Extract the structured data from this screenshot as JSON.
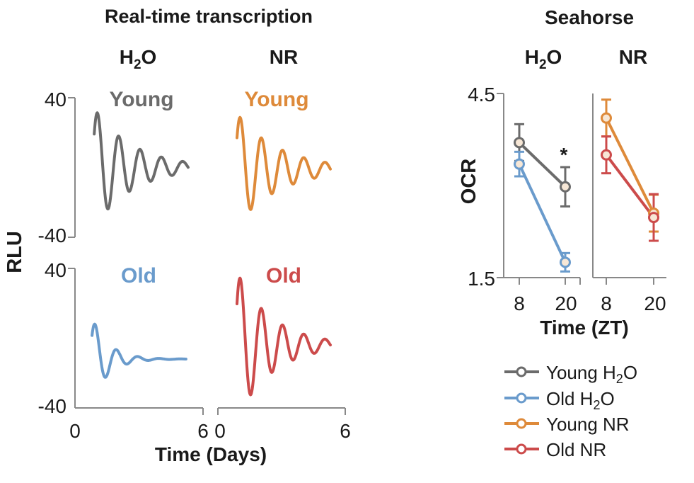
{
  "left_panel": {
    "title": "Real-time transcription",
    "col_h2o": {
      "main": "H",
      "sub": "2",
      "tail": "O"
    },
    "col_nr": "NR",
    "ylabel": "RLU",
    "xlabel": "Time (Days)",
    "y_top": "40",
    "y_bottom": "-40",
    "x_ticks": {
      "a0": "0",
      "a6": "6",
      "b0": "0",
      "b6": "6"
    }
  },
  "right_panel": {
    "title": "Seahorse",
    "col_h2o": {
      "main": "H",
      "sub": "2",
      "tail": "O"
    },
    "col_nr": "NR",
    "ylabel": "OCR",
    "xlabel": "Time (ZT)",
    "y_ticks": [
      "4.5",
      "1.5"
    ],
    "x_ticks": [
      "8",
      "20",
      "8",
      "20"
    ],
    "significance": "*"
  },
  "legend": [
    {
      "main": "Young H",
      "sub": "2",
      "tail": "O",
      "color": "#6b6b6b"
    },
    {
      "main": "Old H",
      "sub": "2",
      "tail": "O",
      "color": "#6a9bcc"
    },
    {
      "main": "Young NR",
      "sub": "",
      "tail": "",
      "color": "#de8a3a"
    },
    {
      "main": "Old NR",
      "sub": "",
      "tail": "",
      "color": "#cc4b4b"
    }
  ],
  "chart_data": [
    {
      "type": "line",
      "title": "Real-time transcription",
      "xlabel": "Time (Days)",
      "ylabel": "RLU",
      "ylim": [
        -40,
        40
      ],
      "xlim": [
        0,
        6
      ],
      "panels": [
        {
          "name": "Young",
          "group": "H2O",
          "color": "#6b6b6b",
          "x_start": 0.9,
          "x_end": 5.3,
          "amplitude": 34,
          "decay": 0.55,
          "period": 1.0,
          "offset": 0
        },
        {
          "name": "Young",
          "group": "NR",
          "color": "#de8a3a",
          "x_start": 0.9,
          "x_end": 5.3,
          "amplitude": 32,
          "decay": 0.5,
          "period": 1.0,
          "offset": -1
        },
        {
          "name": "Old",
          "group": "H2O",
          "color": "#6a9bcc",
          "x_start": 0.8,
          "x_end": 5.2,
          "amplitude": 24,
          "decay": 1.3,
          "period": 1.0,
          "offset": -12
        },
        {
          "name": "Old",
          "group": "NR",
          "color": "#cc4b4b",
          "x_start": 0.9,
          "x_end": 5.3,
          "amplitude": 42,
          "decay": 0.6,
          "period": 1.0,
          "offset": -4
        }
      ]
    },
    {
      "type": "line",
      "title": "Seahorse",
      "xlabel": "Time (ZT)",
      "ylabel": "OCR",
      "ylim": [
        1.5,
        4.5
      ],
      "categories": [
        "8",
        "20"
      ],
      "groups": [
        "H2O",
        "NR"
      ],
      "series": [
        {
          "name": "Young H2O",
          "group": "H2O",
          "color": "#6b6b6b",
          "values": [
            3.7,
            2.98
          ],
          "errors": [
            0.3,
            0.32
          ]
        },
        {
          "name": "Old H2O",
          "group": "H2O",
          "color": "#6a9bcc",
          "values": [
            3.35,
            1.75
          ],
          "errors": [
            0.2,
            0.15
          ]
        },
        {
          "name": "Young NR",
          "group": "NR",
          "color": "#de8a3a",
          "values": [
            4.1,
            2.55
          ],
          "errors": [
            0.3,
            0.3
          ]
        },
        {
          "name": "Old NR",
          "group": "NR",
          "color": "#cc4b4b",
          "values": [
            3.5,
            2.48
          ],
          "errors": [
            0.3,
            0.38
          ]
        }
      ]
    }
  ]
}
